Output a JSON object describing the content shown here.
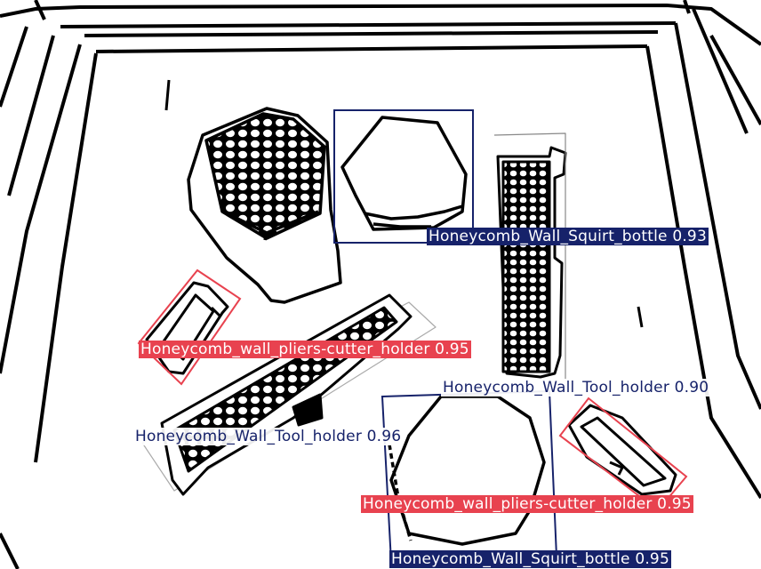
{
  "colors": {
    "navy": "#16226a",
    "red": "#e8424f",
    "ink": "#000000",
    "paper": "#ffffff"
  },
  "detections": [
    {
      "label": "Honeycomb_Wall_Squirt_bottle",
      "score": "0.93",
      "color": "navy"
    },
    {
      "label": "Honeycomb_wall_pliers-cutter_holder",
      "score": "0.95",
      "color": "red"
    },
    {
      "label": "Honeycomb_Wall_Tool_holder",
      "score": "0.90",
      "color": "navy"
    },
    {
      "label": "Honeycomb_Wall_Tool_holder",
      "score": "0.96",
      "color": "navy"
    },
    {
      "label": "Honeycomb_wall_pliers-cutter_holder",
      "score": "0.95",
      "color": "red"
    },
    {
      "label": "Honeycomb_Wall_Squirt_bottle",
      "score": "0.95",
      "color": "navy"
    }
  ]
}
